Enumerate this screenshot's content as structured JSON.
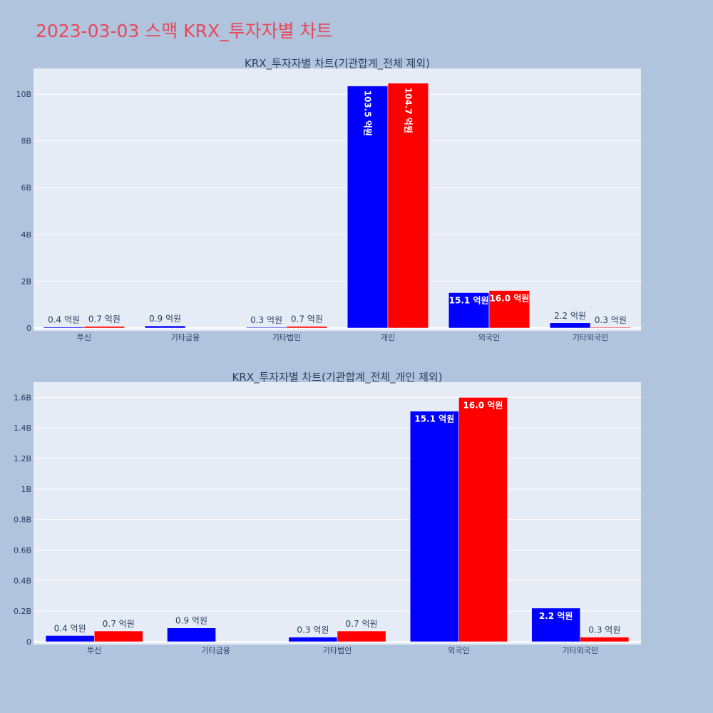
{
  "page_title": "2023-03-03 스맥 KRX_투자자별 차트",
  "colors": {
    "buy": "#0000ff",
    "sell": "#ff0000",
    "plot_bg": "#e5ecf6",
    "page_bg": "#b0c4de",
    "title": "#e8475a"
  },
  "chart_data": [
    {
      "type": "bar",
      "title": "KRX_투자자별 차트(기관합계_전체 제외)",
      "categories": [
        "투신",
        "기타금융",
        "기타법인",
        "개인",
        "외국인",
        "기타외국인"
      ],
      "series": [
        {
          "color": "#0000ff",
          "values": [
            0.04,
            0.09,
            0.03,
            10.35,
            1.51,
            0.22
          ],
          "labels": [
            "0.4 억원",
            "0.9 억원",
            "0.3 억원",
            "103.5 억원",
            "15.1 억원",
            "2.2 억원"
          ]
        },
        {
          "color": "#ff0000",
          "values": [
            0.07,
            null,
            0.07,
            10.47,
            1.6,
            0.03
          ],
          "labels": [
            "0.7 억원",
            "",
            "0.7 억원",
            "104.7 억원",
            "16.0 억원",
            "0.3 억원"
          ]
        }
      ],
      "ylim": [
        0,
        11.1
      ],
      "yticks": [
        0,
        2,
        4,
        6,
        8,
        10
      ],
      "ytick_labels": [
        "0",
        "2B",
        "4B",
        "6B",
        "8B",
        "10B"
      ],
      "grid": true,
      "legend": "none"
    },
    {
      "type": "bar",
      "title": "KRX_투자자별 차트(기관합계_전체_개인 제외)",
      "categories": [
        "투신",
        "기타금융",
        "기타법인",
        "외국인",
        "기타외국인"
      ],
      "series": [
        {
          "color": "#0000ff",
          "values": [
            0.04,
            0.09,
            0.03,
            1.51,
            0.22
          ],
          "labels": [
            "0.4 억원",
            "0.9 억원",
            "0.3 억원",
            "15.1 억원",
            "2.2 억원"
          ]
        },
        {
          "color": "#ff0000",
          "values": [
            0.07,
            null,
            0.07,
            1.6,
            0.03
          ],
          "labels": [
            "0.7 억원",
            "",
            "0.7 억원",
            "16.0 억원",
            "0.3 억원"
          ]
        }
      ],
      "ylim": [
        0,
        1.7
      ],
      "yticks": [
        0,
        0.2,
        0.4,
        0.6,
        0.8,
        1.0,
        1.2,
        1.4,
        1.6
      ],
      "ytick_labels": [
        "0",
        "0.2B",
        "0.4B",
        "0.6B",
        "0.8B",
        "1B",
        "1.2B",
        "1.4B",
        "1.6B"
      ],
      "grid": true,
      "legend": "none"
    }
  ]
}
